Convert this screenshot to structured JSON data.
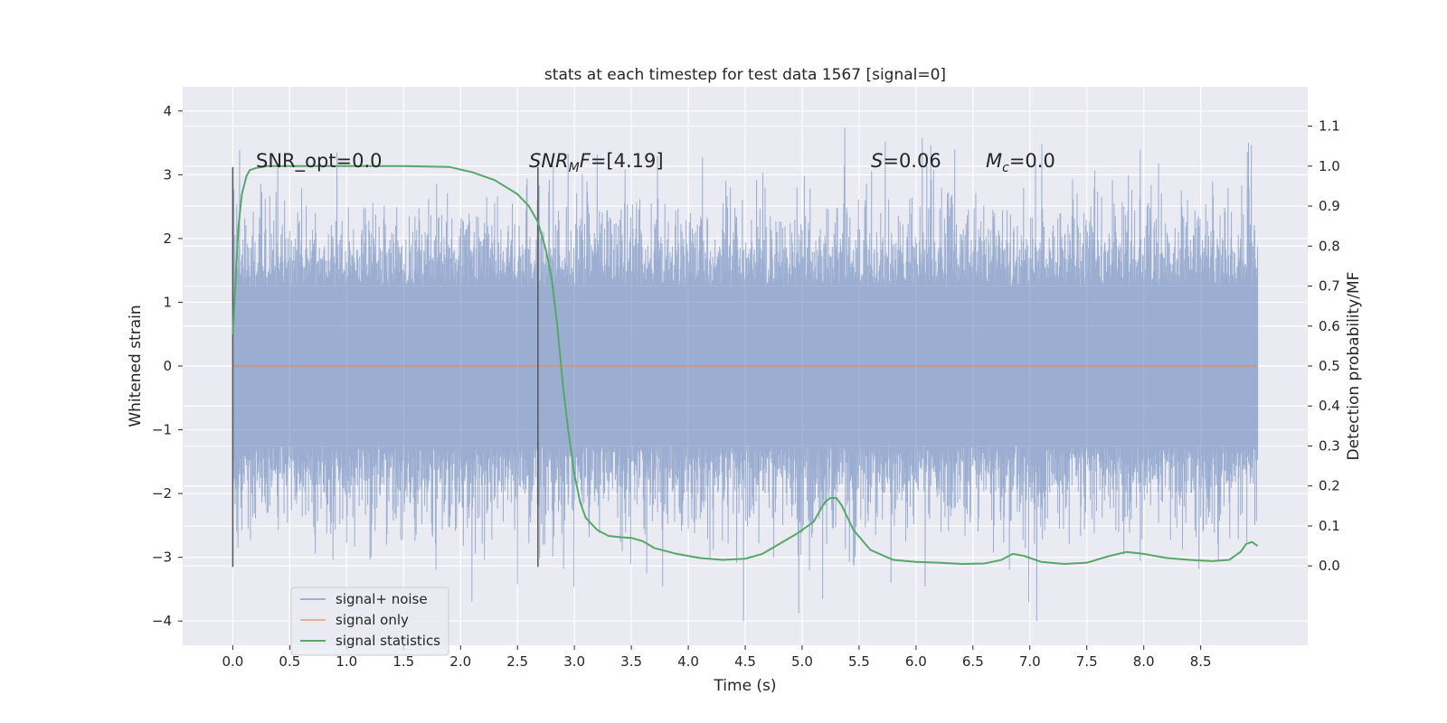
{
  "chart_data": {
    "type": "line",
    "title": "stats at each timestep for test data 1567 [signal=0]",
    "xlabel": "Time (s)",
    "ylabel": "Whitened strain",
    "ylabel_right": "Detection probability/MF",
    "xlim": [
      -0.44,
      9.44
    ],
    "ylim": [
      -4.38,
      4.38
    ],
    "ylim_right": [
      -0.1985,
      1.1985
    ],
    "x_ticks": [
      0.0,
      0.5,
      1.0,
      1.5,
      2.0,
      2.5,
      3.0,
      3.5,
      4.0,
      4.5,
      5.0,
      5.5,
      6.0,
      6.5,
      7.0,
      7.5,
      8.0,
      8.5
    ],
    "x_tick_labels": [
      "0.0",
      "0.5",
      "1.0",
      "1.5",
      "2.0",
      "2.5",
      "3.0",
      "3.5",
      "4.0",
      "4.5",
      "5.0",
      "5.5",
      "6.0",
      "6.5",
      "7.0",
      "7.5",
      "8.0",
      "8.5"
    ],
    "y_ticks": [
      -4,
      -3,
      -2,
      -1,
      0,
      1,
      2,
      3,
      4
    ],
    "y_tick_labels": [
      "−4",
      "−3",
      "−2",
      "−1",
      "0",
      "1",
      "2",
      "3",
      "4"
    ],
    "y_right_ticks": [
      0.0,
      0.1,
      0.2,
      0.3,
      0.4,
      0.5,
      0.6,
      0.7,
      0.8,
      0.9,
      1.0,
      1.1
    ],
    "y_right_tick_labels": [
      "0.0",
      "0.1",
      "0.2",
      "0.3",
      "0.4",
      "0.5",
      "0.6",
      "0.7",
      "0.8",
      "0.9",
      "1.0",
      "1.1"
    ],
    "grid": true,
    "legend_position": "lower-left",
    "series": [
      {
        "name": "signal+ noise",
        "axis": "left",
        "color": "#4c72b0",
        "note_envelope": true,
        "x_range": [
          0.0,
          9.0
        ],
        "amplitude_typical": 1.8,
        "amplitude_max": 4.0
      },
      {
        "name": "signal only",
        "axis": "left",
        "color": "#dd8452",
        "x": [
          0.0,
          9.0
        ],
        "y": [
          0.0,
          0.0
        ]
      },
      {
        "name": "signal statistics",
        "axis": "right",
        "color": "#55a868",
        "x": [
          0.0,
          0.05,
          0.08,
          0.12,
          0.15,
          0.2,
          0.3,
          0.5,
          1.0,
          1.5,
          1.9,
          2.1,
          2.3,
          2.5,
          2.6,
          2.68,
          2.75,
          2.8,
          2.85,
          2.9,
          2.95,
          3.0,
          3.05,
          3.1,
          3.2,
          3.3,
          3.4,
          3.5,
          3.6,
          3.7,
          3.9,
          4.1,
          4.3,
          4.5,
          4.65,
          4.8,
          4.95,
          5.1,
          5.2,
          5.25,
          5.3,
          5.35,
          5.45,
          5.6,
          5.8,
          6.0,
          6.2,
          6.4,
          6.6,
          6.75,
          6.85,
          6.95,
          7.1,
          7.3,
          7.5,
          7.7,
          7.85,
          8.0,
          8.2,
          8.4,
          8.6,
          8.75,
          8.85,
          8.9,
          8.95,
          9.0
        ],
        "y": [
          0.58,
          0.85,
          0.93,
          0.975,
          0.99,
          0.995,
          1.0,
          1.0,
          1.0,
          1.0,
          0.998,
          0.985,
          0.965,
          0.93,
          0.9,
          0.86,
          0.79,
          0.72,
          0.6,
          0.45,
          0.33,
          0.23,
          0.16,
          0.12,
          0.09,
          0.075,
          0.072,
          0.07,
          0.062,
          0.045,
          0.03,
          0.02,
          0.015,
          0.018,
          0.03,
          0.055,
          0.08,
          0.11,
          0.16,
          0.17,
          0.17,
          0.15,
          0.09,
          0.04,
          0.015,
          0.01,
          0.008,
          0.005,
          0.006,
          0.015,
          0.03,
          0.025,
          0.01,
          0.005,
          0.008,
          0.025,
          0.035,
          0.03,
          0.02,
          0.015,
          0.012,
          0.015,
          0.035,
          0.055,
          0.06,
          0.05
        ]
      }
    ],
    "vlines": [
      {
        "x": 0.0,
        "y_range": [
          -3.15,
          3.12
        ],
        "color": "#555555"
      },
      {
        "x": 2.68,
        "y_range": [
          -3.15,
          3.12
        ],
        "color": "#555555"
      }
    ],
    "annotations": [
      {
        "id": "snr-opt",
        "text": "SNR_opt=0.0",
        "x": 0.2,
        "y": 3.2
      },
      {
        "id": "snr-mf",
        "text": "=[4.19]",
        "prefix_main": "SNR",
        "prefix_sub": "M",
        "prefix_after": "F",
        "x": 2.6,
        "y": 3.2
      },
      {
        "id": "s-value",
        "text": "=0.06",
        "prefix_main": "S",
        "x": 5.6,
        "y": 3.2
      },
      {
        "id": "mc-value",
        "text": "=0.0",
        "prefix_main": "M",
        "prefix_sub": "c",
        "x": 6.6,
        "y": 3.2
      }
    ]
  },
  "legend": {
    "items": [
      {
        "label": "signal+ noise",
        "color": "#4c72b0"
      },
      {
        "label": "signal only",
        "color": "#dd8452"
      },
      {
        "label": "signal statistics",
        "color": "#55a868"
      }
    ]
  }
}
